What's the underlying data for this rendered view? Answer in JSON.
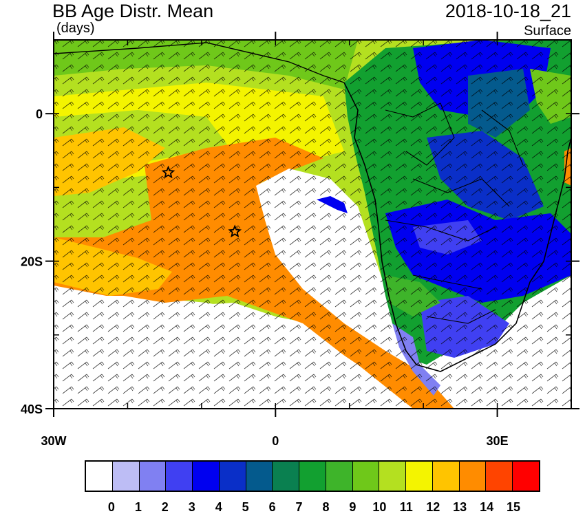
{
  "header": {
    "title": "BB Age Distr. Mean",
    "units": "(days)",
    "valid_time": "2018-10-18_21",
    "level": "Surface"
  },
  "map": {
    "lat_range": [
      -40,
      10
    ],
    "lon_range": [
      -30,
      40
    ],
    "lat_ticks": [
      {
        "value": 0,
        "label": "0"
      },
      {
        "value": -20,
        "label": "20S"
      },
      {
        "value": -40,
        "label": "40S"
      }
    ],
    "lon_ticks": [
      {
        "value": -30,
        "label": "30W"
      },
      {
        "value": 0,
        "label": "0"
      },
      {
        "value": 30,
        "label": "30E"
      }
    ],
    "markers": [
      {
        "type": "star",
        "lat": -8,
        "lon": -14.5
      },
      {
        "type": "star",
        "lat": -16,
        "lon": -5.5
      }
    ]
  },
  "legend": {
    "colors": [
      "#ffffff",
      "#bdbdf5",
      "#8080f2",
      "#4040f2",
      "#0000f0",
      "#0a2fc8",
      "#045a8d",
      "#0a8050",
      "#12a030",
      "#3eb42a",
      "#6fc81a",
      "#b4e020",
      "#f4f400",
      "#ffc400",
      "#ff8c00",
      "#ff4400",
      "#ff0000"
    ],
    "labels": [
      "0",
      "1",
      "2",
      "3",
      "4",
      "5",
      "6",
      "7",
      "8",
      "9",
      "10",
      "11",
      "12",
      "13",
      "14",
      "15"
    ]
  }
}
